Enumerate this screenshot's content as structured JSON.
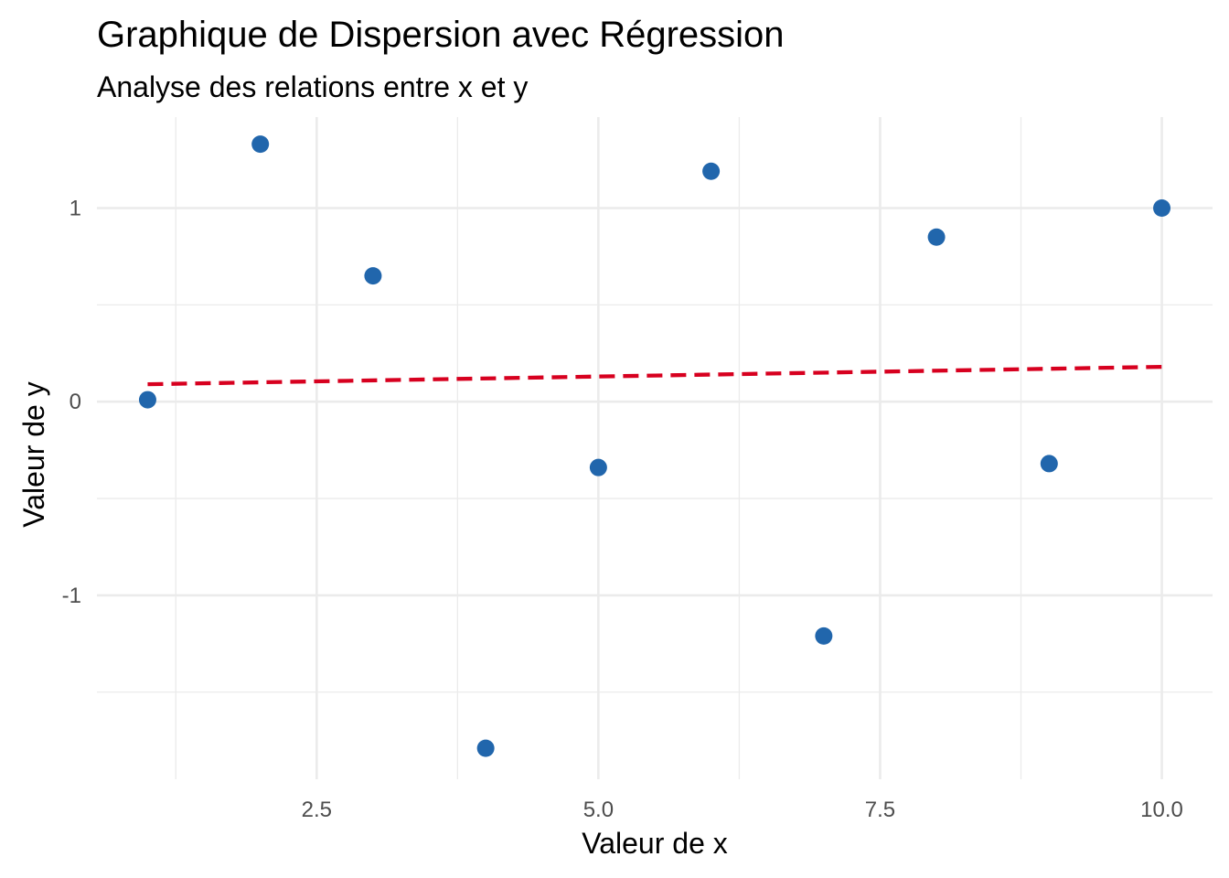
{
  "chart_data": {
    "type": "scatter",
    "title": "Graphique de Dispersion avec Régression",
    "subtitle": "Analyse des relations entre x et y",
    "xlabel": "Valeur de x",
    "ylabel": "Valeur de y",
    "xlim": [
      0.55,
      10.45
    ],
    "ylim": [
      -1.95,
      1.47
    ],
    "x_ticks": [
      2.5,
      5.0,
      7.5,
      10.0
    ],
    "x_tick_labels": [
      "2.5",
      "5.0",
      "7.5",
      "10.0"
    ],
    "x_minor_ticks": [
      1.25,
      3.75,
      6.25,
      8.75
    ],
    "y_ticks": [
      -1,
      0,
      1
    ],
    "y_tick_labels": [
      "-1",
      "0",
      "1"
    ],
    "y_minor_ticks": [
      -1.5,
      -0.5,
      0.5
    ],
    "grid": true,
    "legend": "none",
    "point_color": "#2166ac",
    "line_color": "#d7001f",
    "points": [
      {
        "x": 1,
        "y": 0.01
      },
      {
        "x": 2,
        "y": 1.33
      },
      {
        "x": 3,
        "y": 0.65
      },
      {
        "x": 4,
        "y": -1.79
      },
      {
        "x": 5,
        "y": -0.34
      },
      {
        "x": 6,
        "y": 1.19
      },
      {
        "x": 7,
        "y": -1.21
      },
      {
        "x": 8,
        "y": 0.85
      },
      {
        "x": 9,
        "y": -0.32
      },
      {
        "x": 10,
        "y": 1.0
      }
    ],
    "regression": {
      "style": "dashed",
      "x": [
        1,
        10
      ],
      "y": [
        0.09,
        0.18
      ]
    }
  }
}
